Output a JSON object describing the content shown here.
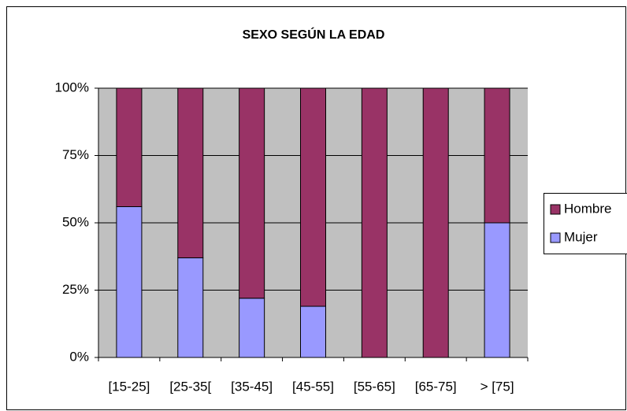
{
  "chart_data": {
    "type": "stacked_bar_100",
    "title": "SEXO SEGÚN LA EDAD",
    "categories": [
      "[15-25]",
      "[25-35[",
      "[35-45]",
      "[45-55]",
      "[55-65]",
      "[65-75]",
      "> [75]"
    ],
    "series": [
      {
        "name": "Mujer",
        "color": "#9999ff",
        "values": [
          56,
          37,
          22,
          19,
          0,
          0,
          50
        ]
      },
      {
        "name": "Hombre",
        "color": "#993366",
        "values": [
          44,
          63,
          78,
          81,
          100,
          100,
          50
        ]
      }
    ],
    "ylim": [
      0,
      100
    ],
    "yticks": [
      {
        "value": 0,
        "label": "0%"
      },
      {
        "value": 25,
        "label": "25%"
      },
      {
        "value": 50,
        "label": "50%"
      },
      {
        "value": 75,
        "label": "75%"
      },
      {
        "value": 100,
        "label": "100%"
      }
    ],
    "grid": true,
    "legend": "right"
  }
}
